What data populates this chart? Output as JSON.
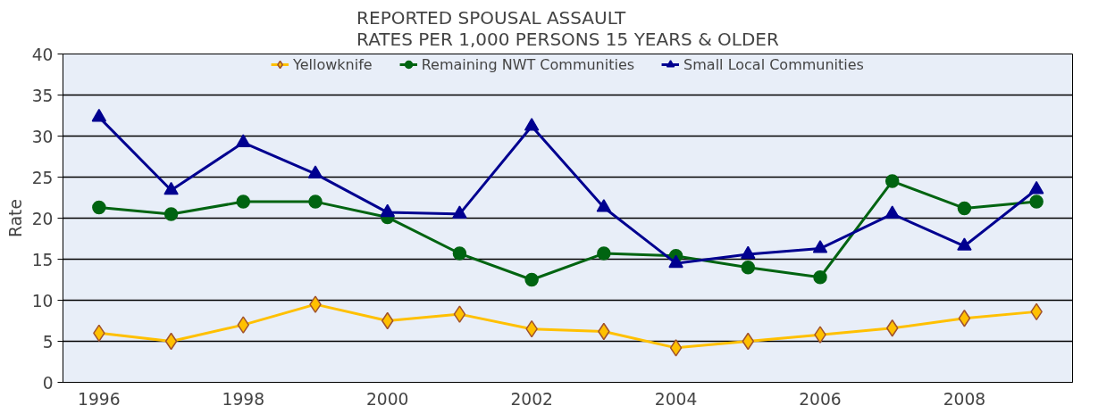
{
  "chart_data": {
    "type": "line",
    "title": "REPORTED SPOUSAL ASSAULT\nRATES PER 1,000 PERSONS 15 YEARS & OLDER",
    "ylabel": "Rate",
    "categories": [
      "1996",
      null,
      "1998",
      null,
      "2000",
      null,
      "2002",
      null,
      "2004",
      null,
      "2006",
      null,
      "2008",
      null
    ],
    "series": [
      {
        "name": "Yellowknife",
        "color": "#ffc000",
        "marker": "diamond",
        "values": [
          6,
          5,
          7,
          9.5,
          7.5,
          8.3,
          6.5,
          6.2,
          4.2,
          5,
          5.8,
          6.6,
          7.8,
          8.6
        ]
      },
      {
        "name": "Remaining NWT Communities",
        "color": "#006411",
        "marker": "circle",
        "values": [
          21.3,
          20.5,
          22,
          22,
          20.1,
          15.7,
          12.5,
          15.7,
          15.4,
          14,
          12.8,
          24.5,
          21.2,
          22
        ]
      },
      {
        "name": "Small Local Communities",
        "color": "#000090",
        "marker": "triangle",
        "values": [
          32.3,
          23.4,
          29.2,
          25.4,
          20.7,
          20.5,
          31.2,
          21.3,
          14.5,
          15.6,
          16.3,
          20.5,
          16.6,
          23.5
        ]
      }
    ],
    "ylim": [
      0,
      40
    ],
    "yticks": [
      0,
      5,
      10,
      15,
      20,
      25,
      30,
      35,
      40
    ],
    "grid": "y",
    "legend": "top"
  }
}
